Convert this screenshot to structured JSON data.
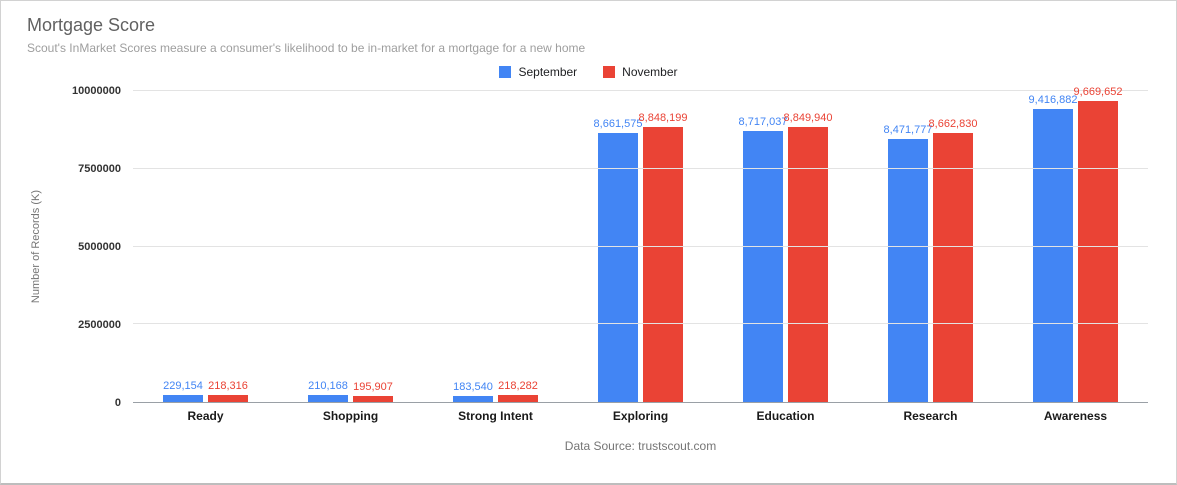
{
  "header": {
    "title": "Mortgage Score",
    "subtitle": "Scout's InMarket Scores measure a consumer's likelihood to be in-market for a mortgage for a new home"
  },
  "chart_data": {
    "type": "bar",
    "title": "Mortgage Score",
    "subtitle": "Scout's InMarket Scores measure a consumer's likelihood to be in-market for a mortgage for a new home",
    "categories": [
      "Ready",
      "Shopping",
      "Strong Intent",
      "Exploring",
      "Education",
      "Research",
      "Awareness"
    ],
    "series": [
      {
        "name": "September",
        "color": "#4285f4",
        "values": [
          229154,
          210168,
          183540,
          8661575,
          8717037,
          8471777,
          9416882
        ]
      },
      {
        "name": "November",
        "color": "#ea4335",
        "values": [
          218316,
          195907,
          218282,
          8848199,
          8849940,
          8662830,
          9669652
        ]
      }
    ],
    "ylabel": "Number of Records (K)",
    "xlabel": "Data Source: trustscout.com",
    "ylim": [
      0,
      10000000
    ],
    "yticks": [
      0,
      2500000,
      5000000,
      7500000,
      10000000
    ],
    "grid": true,
    "legend_position": "top"
  }
}
